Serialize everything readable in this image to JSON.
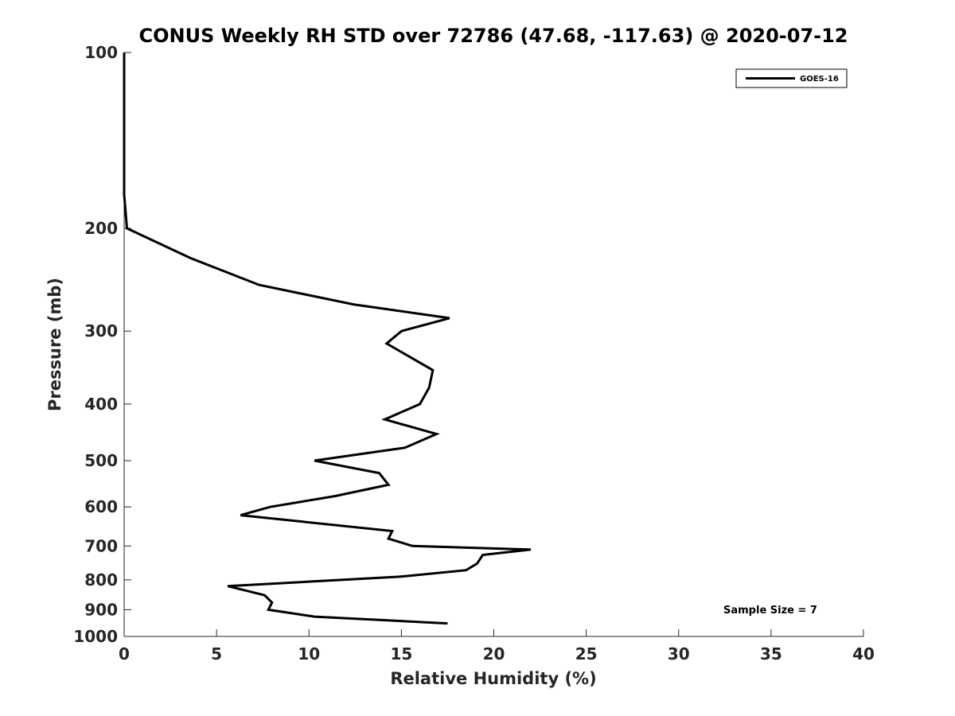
{
  "chart_data": {
    "type": "line",
    "title": "CONUS Weekly RH STD over 72786 (47.68, -117.63) @ 2020-07-12",
    "xlabel": "Relative Humidity (%)",
    "ylabel": "Pressure (mb)",
    "xlim": [
      0,
      40
    ],
    "ylim": [
      100,
      1000
    ],
    "yscale": "log",
    "reverse_y": true,
    "x_ticks": [
      0,
      5,
      10,
      15,
      20,
      25,
      30,
      35,
      40
    ],
    "x_tick_labels": [
      "0",
      "5",
      "10",
      "15",
      "20",
      "25",
      "30",
      "35",
      "40"
    ],
    "y_ticks": [
      100,
      200,
      300,
      400,
      500,
      600,
      700,
      800,
      900,
      1000
    ],
    "y_tick_labels": [
      "100",
      "200",
      "300",
      "400",
      "500",
      "600",
      "700",
      "800",
      "900",
      "1000"
    ],
    "legend_position": "top-right",
    "series": [
      {
        "name": "GOES-16",
        "color": "#000000",
        "x": [
          0.0,
          0.0,
          0.0,
          0.0,
          0.15,
          3.6,
          7.3,
          12.4,
          17.6,
          15.0,
          14.2,
          16.7,
          16.5,
          16.0,
          14.1,
          16.9,
          15.2,
          10.3,
          13.8,
          14.3,
          11.4,
          7.9,
          6.3,
          14.5,
          14.3,
          15.6,
          22.0,
          19.4,
          19.1,
          18.5,
          14.9,
          5.6,
          7.6,
          8.0,
          7.8,
          10.3,
          17.5
        ],
        "y": [
          100,
          125,
          150,
          175,
          200,
          225,
          250,
          270,
          285,
          300,
          315,
          350,
          375,
          400,
          425,
          450,
          475,
          500,
          525,
          550,
          575,
          600,
          620,
          660,
          680,
          700,
          710,
          725,
          750,
          770,
          790,
          820,
          850,
          875,
          900,
          925,
          950
        ]
      }
    ],
    "annotations": [
      "Sample Size = 7"
    ]
  }
}
